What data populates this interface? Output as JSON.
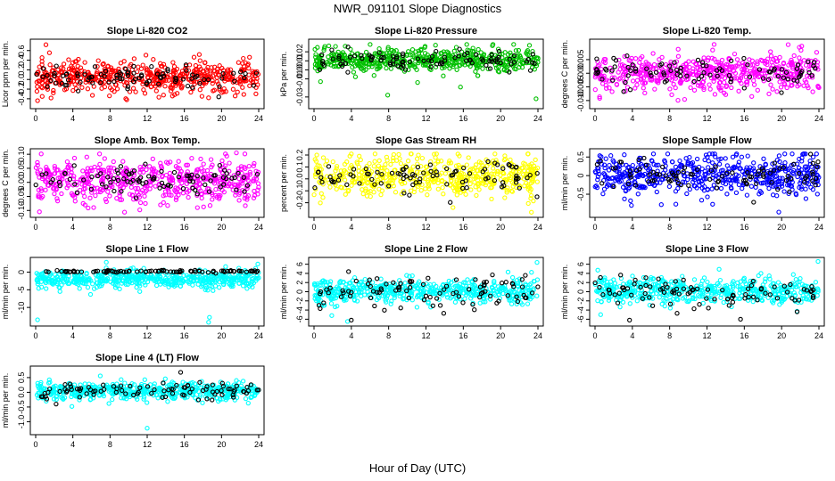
{
  "figure": {
    "title": "NWR_091101  Slope Diagnostics",
    "xlabel": "Hour of Day (UTC)"
  },
  "chart_data": [
    {
      "type": "scatter",
      "title": "Slope Li-820 CO2",
      "ylabel": "Licor ppm per min.",
      "xlim": [
        0,
        24
      ],
      "ylim": [
        -0.55,
        0.78
      ],
      "xticks": [
        0,
        4,
        8,
        12,
        16,
        20,
        24
      ],
      "yticks": [
        -0.4,
        -0.2,
        0.0,
        0.2,
        0.4,
        0.6
      ],
      "ytick_labels": [
        "-0.4",
        "-0.2",
        "0.0",
        "0.2",
        "0.4",
        "0.6"
      ],
      "series": [
        {
          "color": "#ff0000",
          "n": 520,
          "center": 0.05,
          "spread": 0.17,
          "points": [
            [
              1.1,
              0.72
            ],
            [
              0.2,
              -0.44
            ],
            [
              0.7,
              -0.35
            ],
            [
              18.6,
              -0.38
            ],
            [
              4.6,
              0.42
            ],
            [
              22.4,
              -0.31
            ]
          ]
        },
        {
          "color": "#000000",
          "n": 90,
          "center": 0.05,
          "spread": 0.11,
          "points": [
            [
              19.7,
              -0.36
            ],
            [
              13.7,
              0.12
            ]
          ]
        }
      ]
    },
    {
      "type": "scatter",
      "title": "Slope Li-820 Pressure",
      "ylabel": "kPa per min.",
      "xlim": [
        0,
        24
      ],
      "ylim": [
        -0.04,
        0.031
      ],
      "xticks": [
        0,
        4,
        8,
        12,
        16,
        20,
        24
      ],
      "yticks": [
        -0.03,
        -0.01,
        0.0,
        0.01,
        0.02
      ],
      "ytick_labels": [
        "-0.03",
        "-0.01",
        "0.00",
        "0.01",
        "0.02"
      ],
      "series": [
        {
          "color": "#00c000",
          "n": 520,
          "center": 0.011,
          "spread": 0.0065,
          "points": [
            [
              7.9,
              -0.028
            ],
            [
              23.8,
              -0.032
            ],
            [
              15.7,
              -0.019
            ],
            [
              2.3,
              0.026
            ],
            [
              0.7,
              -0.013
            ],
            [
              11.1,
              -0.014
            ]
          ]
        },
        {
          "color": "#000000",
          "n": 90,
          "center": 0.011,
          "spread": 0.005,
          "points": [
            [
              1.9,
              0.022
            ],
            [
              15.6,
              0.023
            ]
          ]
        }
      ]
    },
    {
      "type": "scatter",
      "title": "Slope Li-820 Temp.",
      "ylabel": "degrees C per min.",
      "xlim": [
        0,
        24
      ],
      "ylim": [
        -0.012,
        0.0115
      ],
      "xticks": [
        0,
        4,
        8,
        12,
        16,
        20,
        24
      ],
      "yticks": [
        -0.01,
        -0.005,
        0.0,
        0.005
      ],
      "ytick_labels": [
        "-0.010",
        "-0.005",
        "0.000",
        "0.005"
      ],
      "series": [
        {
          "color": "#ff00ff",
          "n": 520,
          "center": 0.0003,
          "spread": 0.0032,
          "points": [
            [
              20.7,
              0.0105
            ],
            [
              21.9,
              0.0095
            ],
            [
              12.6,
              0.0085
            ],
            [
              0.5,
              -0.0092
            ],
            [
              9.6,
              -0.0096
            ],
            [
              16.8,
              -0.0085
            ]
          ]
        },
        {
          "color": "#000000",
          "n": 90,
          "center": 0.0003,
          "spread": 0.0025,
          "points": [
            [
              2.0,
              0.0055
            ]
          ]
        }
      ]
    },
    {
      "type": "scatter",
      "title": "Slope Amb. Box Temp.",
      "ylabel": "degrees C per min.",
      "xlim": [
        0,
        24
      ],
      "ylim": [
        -0.115,
        0.11
      ],
      "xticks": [
        0,
        4,
        8,
        12,
        16,
        20,
        24
      ],
      "yticks": [
        -0.1,
        -0.05,
        0.0,
        0.05,
        0.1
      ],
      "ytick_labels": [
        "-0.10",
        "-0.05",
        "0.00",
        "0.05",
        "0.10"
      ],
      "series": [
        {
          "color": "#ff00ff",
          "n": 520,
          "center": 0.005,
          "spread": 0.04,
          "points": [
            [
              0.4,
              -0.105
            ],
            [
              21.6,
              0.105
            ],
            [
              5.5,
              0.09
            ],
            [
              11.2,
              -0.098
            ],
            [
              17.4,
              -0.09
            ]
          ]
        },
        {
          "color": "#000000",
          "n": 90,
          "center": 0.005,
          "spread": 0.025,
          "points": [
            [
              10.8,
              -0.055
            ]
          ]
        }
      ]
    },
    {
      "type": "scatter",
      "title": "Slope Gas Stream RH",
      "ylabel": "percent per min.",
      "xlim": [
        0,
        24
      ],
      "ylim": [
        -0.3,
        0.23
      ],
      "xticks": [
        0,
        4,
        8,
        12,
        16,
        20,
        24
      ],
      "yticks": [
        -0.2,
        -0.1,
        0.0,
        0.1,
        0.2
      ],
      "ytick_labels": [
        "-0.2",
        "-0.1",
        "0.0",
        "0.1",
        "0.2"
      ],
      "series": [
        {
          "color": "#ffff00",
          "n": 520,
          "center": 0.02,
          "spread": 0.085,
          "points": [
            [
              23.3,
              -0.28
            ],
            [
              0.3,
              0.2
            ],
            [
              14.9,
              -0.24
            ]
          ]
        },
        {
          "color": "#000000",
          "n": 90,
          "center": 0.02,
          "spread": 0.06,
          "points": [
            [
              23.9,
              -0.15
            ]
          ]
        }
      ]
    },
    {
      "type": "scatter",
      "title": "Slope Sample Flow",
      "ylabel": "ml/min per min.",
      "xlim": [
        0,
        24
      ],
      "ylim": [
        -1.05,
        0.65
      ],
      "xticks": [
        0,
        4,
        8,
        12,
        16,
        20,
        24
      ],
      "yticks": [
        -0.5,
        0.0,
        0.5
      ],
      "ytick_labels": [
        "-0.5",
        "0",
        "0.5"
      ],
      "series": [
        {
          "color": "#0000ff",
          "n": 520,
          "center": 0.0,
          "spread": 0.27,
          "points": [
            [
              19.7,
              -0.98
            ],
            [
              3.9,
              -0.8
            ],
            [
              7.1,
              -0.78
            ],
            [
              12.6,
              -0.77
            ],
            [
              22.6,
              -0.62
            ]
          ]
        },
        {
          "color": "#000000",
          "n": 90,
          "center": 0.0,
          "spread": 0.2,
          "points": [
            [
              23.9,
              0.37
            ],
            [
              20.2,
              0.22
            ]
          ]
        }
      ]
    },
    {
      "type": "scatter",
      "title": "Slope Line 1 Flow",
      "ylabel": "ml/min per min.",
      "xlim": [
        0,
        24
      ],
      "ylim": [
        -14.5,
        3.4
      ],
      "xticks": [
        0,
        4,
        8,
        12,
        16,
        20,
        24
      ],
      "yticks": [
        -10,
        -5,
        0
      ],
      "ytick_labels": [
        "-10",
        "-5",
        "0"
      ],
      "series": [
        {
          "color": "#00ffff",
          "n": 520,
          "center": -1.9,
          "spread": 1.3,
          "points": [
            [
              7.6,
              2.8
            ],
            [
              0.2,
              -13.5
            ],
            [
              18.6,
              -14.2
            ],
            [
              18.7,
              -12.8
            ],
            [
              5.9,
              -6.3
            ],
            [
              23.9,
              2.3
            ]
          ]
        },
        {
          "color": "#000000",
          "n": 90,
          "center": 0.2,
          "spread": 0.15,
          "points": [
            [
              7.9,
              0.4
            ]
          ]
        }
      ]
    },
    {
      "type": "scatter",
      "title": "Slope Line 2 Flow",
      "ylabel": "ml/min per min.",
      "xlim": [
        0,
        24
      ],
      "ylim": [
        -6.9,
        6.9
      ],
      "xticks": [
        0,
        4,
        8,
        12,
        16,
        20,
        24
      ],
      "yticks": [
        -6,
        -4,
        -2,
        0,
        2,
        4,
        6
      ],
      "ytick_labels": [
        "-6",
        "-4",
        "-2",
        "0",
        "2",
        "4",
        "6"
      ],
      "series": [
        {
          "color": "#00ffff",
          "n": 520,
          "center": 0.1,
          "spread": 1.35,
          "points": [
            [
              23.9,
              6.4
            ],
            [
              20.8,
              4.3
            ],
            [
              1.9,
              -5.2
            ],
            [
              3.6,
              -6.5
            ]
          ]
        },
        {
          "color": "#000000",
          "n": 90,
          "center": 0.1,
          "spread": 1.8,
          "points": [
            [
              3.7,
              4.4
            ],
            [
              4.0,
              -6.2
            ],
            [
              13.9,
              -4.7
            ]
          ]
        }
      ]
    },
    {
      "type": "scatter",
      "title": "Slope Line 3 Flow",
      "ylabel": "ml/min per min.",
      "xlim": [
        0,
        24
      ],
      "ylim": [
        -6.9,
        6.9
      ],
      "xticks": [
        0,
        4,
        8,
        12,
        16,
        20,
        24
      ],
      "yticks": [
        -6,
        -4,
        -2,
        0,
        2,
        4,
        6
      ],
      "ytick_labels": [
        "-6",
        "-4",
        "-2",
        "0",
        "2",
        "4",
        "6"
      ],
      "series": [
        {
          "color": "#00ffff",
          "n": 520,
          "center": 0.1,
          "spread": 1.35,
          "points": [
            [
              23.9,
              6.6
            ],
            [
              0.3,
              4.7
            ],
            [
              13.3,
              4.9
            ],
            [
              0.6,
              -5.0
            ]
          ]
        },
        {
          "color": "#000000",
          "n": 90,
          "center": 0.1,
          "spread": 1.8,
          "points": [
            [
              3.7,
              -6.2
            ],
            [
              15.6,
              -6.0
            ],
            [
              8.8,
              -4.7
            ]
          ]
        }
      ]
    },
    {
      "type": "scatter",
      "title": "Slope Line 4 (LT) Flow",
      "ylabel": "ml/min per min.",
      "xlim": [
        0,
        24
      ],
      "ylim": [
        -1.35,
        0.8
      ],
      "xticks": [
        0,
        4,
        8,
        12,
        16,
        20,
        24
      ],
      "yticks": [
        -1.0,
        -0.5,
        0.0,
        0.5
      ],
      "ytick_labels": [
        "-1.0",
        "-0.5",
        "0.0",
        "0.5"
      ],
      "series": [
        {
          "color": "#00ffff",
          "n": 520,
          "center": 0.05,
          "spread": 0.15,
          "points": [
            [
              12.0,
              -1.22
            ],
            [
              3.9,
              -0.48
            ],
            [
              9.2,
              0.43
            ],
            [
              21.6,
              0.4
            ]
          ]
        },
        {
          "color": "#000000",
          "n": 90,
          "center": 0.05,
          "spread": 0.14,
          "points": [
            [
              15.6,
              0.68
            ],
            [
              2.2,
              -0.4
            ]
          ]
        }
      ]
    }
  ]
}
